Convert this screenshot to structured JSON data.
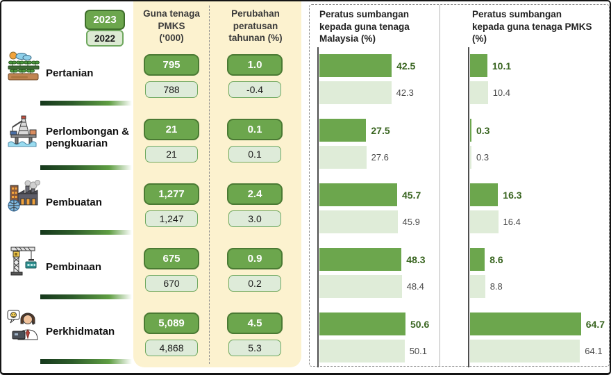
{
  "legend": {
    "year_2023": "2023",
    "year_2022": "2022"
  },
  "table": {
    "col1_header": "Guna tenaga\nPMKS\n(‘000)",
    "col2_header": "Perubahan\nperatusan\ntahunan (%)"
  },
  "sectors": [
    {
      "label": "Pertanian",
      "icon": "farm-icon",
      "pmks_2023": "795",
      "pmks_2022": "788",
      "chg_2023": "1.0",
      "chg_2022": "-0.4"
    },
    {
      "label": "Perlombongan & pengkuarian",
      "icon": "oil-rig-icon",
      "pmks_2023": "21",
      "pmks_2022": "21",
      "chg_2023": "0.1",
      "chg_2022": "0.1"
    },
    {
      "label": "Pembuatan",
      "icon": "factory-icon",
      "pmks_2023": "1,277",
      "pmks_2022": "1,247",
      "chg_2023": "2.4",
      "chg_2022": "3.0"
    },
    {
      "label": "Pembinaan",
      "icon": "crane-icon",
      "pmks_2023": "675",
      "pmks_2022": "670",
      "chg_2023": "0.9",
      "chg_2022": "0.2"
    },
    {
      "label": "Perkhidmatan",
      "icon": "service-icon",
      "pmks_2023": "5,089",
      "pmks_2022": "4,868",
      "chg_2023": "4.5",
      "chg_2022": "5.3"
    }
  ],
  "chart_data": [
    {
      "type": "bar",
      "orientation": "horizontal",
      "title": "Peratus sumbangan kepada guna tenaga Malaysia (%)",
      "categories": [
        "Pertanian",
        "Perlombongan & pengkuarian",
        "Pembuatan",
        "Pembinaan",
        "Perkhidmatan"
      ],
      "series": [
        {
          "name": "2023",
          "values": [
            42.5,
            27.5,
            45.7,
            48.3,
            50.6
          ]
        },
        {
          "name": "2022",
          "values": [
            42.3,
            27.6,
            45.9,
            48.4,
            50.1
          ]
        }
      ],
      "xlim": [
        0,
        55
      ],
      "grid": false,
      "legend_position": "shared-top-left"
    },
    {
      "type": "bar",
      "orientation": "horizontal",
      "title": "Peratus sumbangan kepada guna tenaga PMKS (%)",
      "categories": [
        "Pertanian",
        "Perlombongan & pengkuarian",
        "Pembuatan",
        "Pembinaan",
        "Perkhidmatan"
      ],
      "series": [
        {
          "name": "2023",
          "values": [
            10.1,
            0.3,
            16.3,
            8.6,
            64.7
          ]
        },
        {
          "name": "2022",
          "values": [
            10.4,
            0.3,
            16.4,
            8.8,
            64.1
          ]
        }
      ],
      "xlim": [
        0,
        70
      ],
      "grid": false,
      "legend_position": "shared-top-left"
    }
  ],
  "colors": {
    "green_2023": "#6CA64D",
    "green_border": "#4A7A33",
    "light_2022": "#DCEAD3",
    "panel_yellow": "#FCF2CF",
    "value_label_green": "#38641F"
  }
}
